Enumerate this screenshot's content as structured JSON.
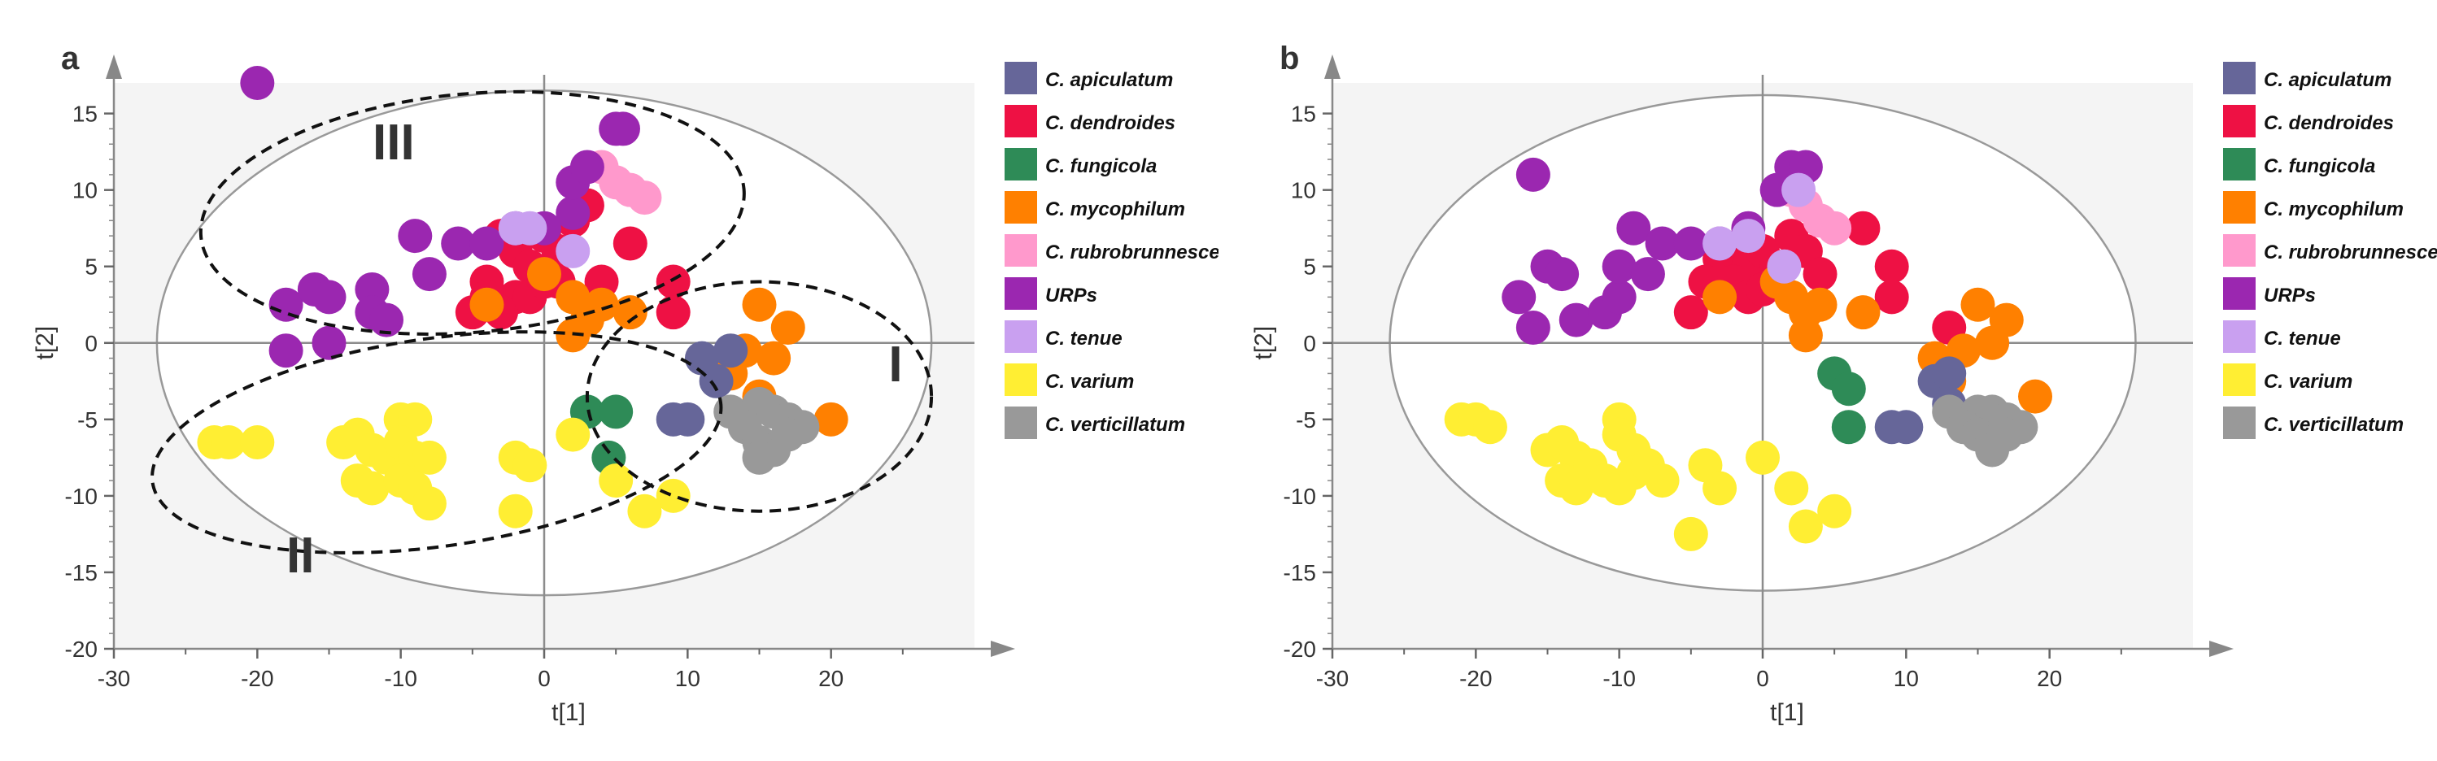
{
  "chart_data": [
    {
      "type": "scatter",
      "panel_label": "a",
      "xlabel": "t[1]",
      "ylabel": "t[2]",
      "xlim": [
        -30,
        30
      ],
      "ylim": [
        -20,
        17
      ],
      "xticks": [
        -30,
        -20,
        -10,
        0,
        10,
        20
      ],
      "yticks": [
        -20,
        -15,
        -10,
        -5,
        0,
        5,
        10,
        15
      ],
      "ellipse": {
        "cx": 0,
        "cy": 0,
        "rx": 27,
        "ry": 16.5
      },
      "cluster_labels": [
        {
          "text": "I",
          "x": 24.5,
          "y": -2.5
        },
        {
          "text": "II",
          "x": -17,
          "y": -15
        },
        {
          "text": "III",
          "x": -10.5,
          "y": 12
        }
      ],
      "clusters": [
        {
          "name": "I",
          "cx": 15,
          "cy": -3.5,
          "rx": 12,
          "ry": 7.5,
          "rot": 0
        },
        {
          "name": "II",
          "cx": -7.5,
          "cy": -6.5,
          "rx": 20,
          "ry": 6.8,
          "rot": -8
        },
        {
          "name": "III",
          "cx": -5,
          "cy": 8.5,
          "rx": 19,
          "ry": 7.8,
          "rot": -5
        }
      ],
      "series": [
        {
          "name": "C. dendroides",
          "color": "#ee1144",
          "points": [
            [
              -3,
              7
            ],
            [
              -2,
              6
            ],
            [
              -1,
              5
            ],
            [
              0,
              7
            ],
            [
              1,
              6
            ],
            [
              2,
              8
            ],
            [
              3,
              9
            ],
            [
              -4,
              4
            ],
            [
              -2,
              3
            ],
            [
              -5,
              2
            ],
            [
              -3,
              2
            ],
            [
              -1,
              3
            ],
            [
              0,
              4
            ],
            [
              -4,
              3
            ],
            [
              1,
              4
            ],
            [
              4,
              4
            ],
            [
              6,
              6.5
            ],
            [
              9,
              4
            ],
            [
              9,
              2
            ]
          ]
        },
        {
          "name": "C. mycophilum",
          "color": "#ff8000",
          "points": [
            [
              -4,
              2.5
            ],
            [
              0,
              4.5
            ],
            [
              2,
              3
            ],
            [
              3,
              1.5
            ],
            [
              4,
              2.5
            ],
            [
              6,
              2
            ],
            [
              2,
              0.5
            ],
            [
              15,
              2.5
            ],
            [
              17,
              1
            ],
            [
              16,
              -1
            ],
            [
              14,
              -0.5
            ],
            [
              13,
              -2
            ],
            [
              15,
              -3.5
            ],
            [
              20,
              -5
            ]
          ]
        },
        {
          "name": "C. rubrobrunnescens",
          "color": "#ff99cc",
          "points": [
            [
              4,
              11.5
            ],
            [
              5,
              10.5
            ],
            [
              6,
              10
            ],
            [
              7,
              9.5
            ]
          ]
        },
        {
          "name": "URPs",
          "color": "#9b27b0",
          "points": [
            [
              -20,
              17
            ],
            [
              -18,
              2.5
            ],
            [
              -18,
              -0.5
            ],
            [
              -16,
              3.5
            ],
            [
              -15,
              3
            ],
            [
              -15,
              0
            ],
            [
              -12,
              3.5
            ],
            [
              -12,
              2
            ],
            [
              -11,
              1.5
            ],
            [
              -9,
              7
            ],
            [
              -8,
              4.5
            ],
            [
              -6,
              6.5
            ],
            [
              -4,
              6.5
            ],
            [
              -2,
              7.5
            ],
            [
              0,
              7.5
            ],
            [
              2,
              8.5
            ],
            [
              2,
              10.5
            ],
            [
              3,
              11.5
            ],
            [
              5,
              14
            ],
            [
              5.5,
              14
            ]
          ]
        },
        {
          "name": "C. tenue",
          "color": "#c9a0f0",
          "points": [
            [
              -2,
              7.5
            ],
            [
              -1,
              7.5
            ],
            [
              2,
              6
            ]
          ]
        },
        {
          "name": "C. fungicola",
          "color": "#2e8b57",
          "points": [
            [
              3,
              -4.5
            ],
            [
              5,
              -4.5
            ],
            [
              4.5,
              -7.5
            ]
          ]
        },
        {
          "name": "C. apiculatum",
          "color": "#666699",
          "points": [
            [
              11,
              -1
            ],
            [
              12,
              -2.5
            ],
            [
              13,
              -0.5
            ],
            [
              9,
              -5
            ],
            [
              10,
              -5
            ]
          ]
        },
        {
          "name": "C. verticillatum",
          "color": "#999999",
          "points": [
            [
              13,
              -4.5
            ],
            [
              15,
              -4
            ],
            [
              16,
              -4.5
            ],
            [
              17,
              -5
            ],
            [
              14,
              -5.5
            ],
            [
              15,
              -6.5
            ],
            [
              16,
              -7
            ],
            [
              15,
              -7.5
            ],
            [
              18,
              -5.5
            ],
            [
              17,
              -6
            ]
          ]
        },
        {
          "name": "C. varium",
          "color": "#ffee33",
          "points": [
            [
              -23,
              -6.5
            ],
            [
              -22,
              -6.5
            ],
            [
              -20,
              -6.5
            ],
            [
              -14,
              -6.5
            ],
            [
              -13,
              -6
            ],
            [
              -12,
              -7
            ],
            [
              -11,
              -7.5
            ],
            [
              -10,
              -5
            ],
            [
              -9,
              -5
            ],
            [
              -10,
              -6.5
            ],
            [
              -9,
              -7.5
            ],
            [
              -8,
              -7.5
            ],
            [
              -13,
              -9
            ],
            [
              -12,
              -9.5
            ],
            [
              -10,
              -9
            ],
            [
              -9,
              -9.5
            ],
            [
              -8,
              -10.5
            ],
            [
              -2,
              -7.5
            ],
            [
              -1,
              -8
            ],
            [
              -2,
              -11
            ],
            [
              2,
              -6
            ],
            [
              5,
              -9
            ],
            [
              7,
              -11
            ],
            [
              9,
              -10
            ]
          ]
        }
      ]
    },
    {
      "type": "scatter",
      "panel_label": "b",
      "xlabel": "t[1]",
      "ylabel": "t[2]",
      "xlim": [
        -30,
        30
      ],
      "ylim": [
        -20,
        17
      ],
      "xticks": [
        -30,
        -20,
        -10,
        0,
        10,
        20
      ],
      "yticks": [
        -20,
        -15,
        -10,
        -5,
        0,
        5,
        10,
        15
      ],
      "ellipse": {
        "cx": 0,
        "cy": 0,
        "rx": 26,
        "ry": 16.2
      },
      "cluster_labels": [],
      "clusters": [],
      "series": [
        {
          "name": "C. dendroides",
          "color": "#ee1144",
          "points": [
            [
              -3,
              5.5
            ],
            [
              -2,
              6
            ],
            [
              -1,
              5
            ],
            [
              0,
              6
            ],
            [
              1,
              5
            ],
            [
              2,
              7
            ],
            [
              3,
              6
            ],
            [
              -4,
              4
            ],
            [
              -2,
              4
            ],
            [
              -1,
              3
            ],
            [
              0,
              3.5
            ],
            [
              1,
              4
            ],
            [
              -5,
              2
            ],
            [
              4,
              4.5
            ],
            [
              7,
              7.5
            ],
            [
              9,
              5
            ],
            [
              9,
              3
            ],
            [
              13,
              1
            ]
          ]
        },
        {
          "name": "C. mycophilum",
          "color": "#ff8000",
          "points": [
            [
              -3,
              3
            ],
            [
              1,
              4
            ],
            [
              2,
              3
            ],
            [
              3,
              2
            ],
            [
              4,
              2.5
            ],
            [
              7,
              2
            ],
            [
              3,
              0.5
            ],
            [
              15,
              2.5
            ],
            [
              17,
              1.5
            ],
            [
              16,
              0
            ],
            [
              14,
              -0.5
            ],
            [
              12,
              -1
            ],
            [
              13,
              -2.5
            ],
            [
              19,
              -3.5
            ]
          ]
        },
        {
          "name": "C. rubrobrunnescens",
          "color": "#ff99cc",
          "points": [
            [
              2,
              10
            ],
            [
              3,
              9
            ],
            [
              4,
              8
            ],
            [
              5,
              7.5
            ]
          ]
        },
        {
          "name": "URPs",
          "color": "#9b27b0",
          "points": [
            [
              -16,
              11
            ],
            [
              -17,
              3
            ],
            [
              -16,
              1
            ],
            [
              -15,
              5
            ],
            [
              -14,
              4.5
            ],
            [
              -13,
              1.5
            ],
            [
              -11,
              2
            ],
            [
              -10,
              3
            ],
            [
              -10,
              5
            ],
            [
              -9,
              7.5
            ],
            [
              -8,
              4.5
            ],
            [
              -7,
              6.5
            ],
            [
              -5,
              6.5
            ],
            [
              -3,
              6.5
            ],
            [
              -1,
              7.5
            ],
            [
              1,
              10
            ],
            [
              2,
              11.5
            ],
            [
              3,
              11.5
            ]
          ]
        },
        {
          "name": "C. tenue",
          "color": "#c9a0f0",
          "points": [
            [
              -3,
              6.5
            ],
            [
              -1,
              7
            ],
            [
              1.5,
              5
            ],
            [
              2.5,
              10
            ]
          ]
        },
        {
          "name": "C. fungicola",
          "color": "#2e8b57",
          "points": [
            [
              5,
              -2
            ],
            [
              6,
              -3
            ],
            [
              6,
              -5.5
            ]
          ]
        },
        {
          "name": "C. apiculatum",
          "color": "#666699",
          "points": [
            [
              12,
              -2.5
            ],
            [
              13,
              -2
            ],
            [
              13,
              -4
            ],
            [
              9,
              -5.5
            ],
            [
              10,
              -5.5
            ]
          ]
        },
        {
          "name": "C. verticillatum",
          "color": "#999999",
          "points": [
            [
              13,
              -4.5
            ],
            [
              15,
              -4.5
            ],
            [
              16,
              -4.5
            ],
            [
              17,
              -5
            ],
            [
              14,
              -5.5
            ],
            [
              15,
              -6
            ],
            [
              16,
              -6.5
            ],
            [
              16,
              -7
            ],
            [
              18,
              -5.5
            ],
            [
              17,
              -6
            ]
          ]
        },
        {
          "name": "C. varium",
          "color": "#ffee33",
          "points": [
            [
              -21,
              -5
            ],
            [
              -20,
              -5
            ],
            [
              -19,
              -5.5
            ],
            [
              -15,
              -7
            ],
            [
              -14,
              -6.5
            ],
            [
              -13,
              -7.5
            ],
            [
              -12,
              -8
            ],
            [
              -10,
              -5
            ],
            [
              -10,
              -6
            ],
            [
              -9,
              -7
            ],
            [
              -9,
              -8.5
            ],
            [
              -8,
              -8
            ],
            [
              -14,
              -9
            ],
            [
              -13,
              -9.5
            ],
            [
              -11,
              -9
            ],
            [
              -10,
              -9.5
            ],
            [
              -7,
              -9
            ],
            [
              -4,
              -8
            ],
            [
              -3,
              -9.5
            ],
            [
              -5,
              -12.5
            ],
            [
              0,
              -7.5
            ],
            [
              2,
              -9.5
            ],
            [
              3,
              -12
            ],
            [
              5,
              -11
            ]
          ]
        }
      ]
    }
  ],
  "legend": [
    {
      "label": "C. apiculatum",
      "color": "#666699"
    },
    {
      "label": "C. dendroides",
      "color": "#ee1144"
    },
    {
      "label": "C. fungicola",
      "color": "#2e8b57"
    },
    {
      "label": "C. mycophilum",
      "color": "#ff8000"
    },
    {
      "label": "C. rubrobrunnescens",
      "color": "#ff99cc"
    },
    {
      "label": "URPs",
      "color": "#9b27b0"
    },
    {
      "label": "C. tenue",
      "color": "#c9a0f0"
    },
    {
      "label": "C. varium",
      "color": "#ffee33"
    },
    {
      "label": "C. verticillatum",
      "color": "#999999"
    }
  ]
}
